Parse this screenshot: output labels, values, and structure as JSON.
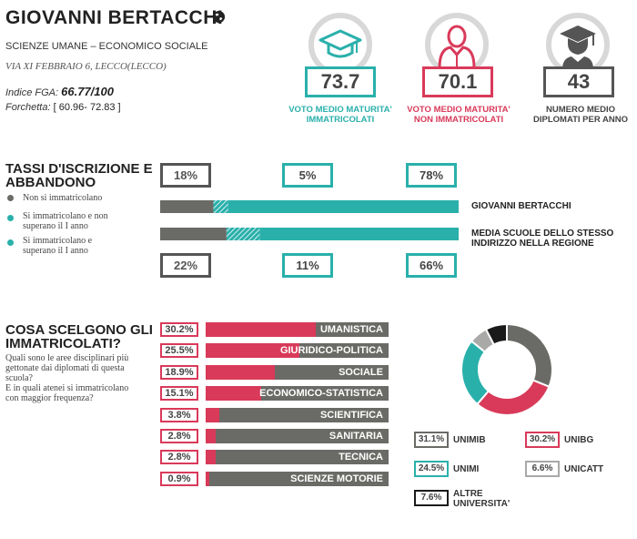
{
  "school": {
    "name": "GIOVANNI BERTACCHI",
    "type": "SCIENZE UMANE – ECONOMICO SOCIALE",
    "address": "VIA XI FEBBRAIO 6, LECCO(LECCO)",
    "fga_label": "Indice FGA:",
    "fga_value": "66.77/100",
    "forchetta_label": "Forchetta:",
    "forchetta_value": "[ 60.96- 72.83 ]"
  },
  "stats": [
    {
      "icon": "graduation-cap-icon",
      "value": "73.7",
      "label_1": "VOTO MEDIO MATURITA'",
      "label_2": "IMMATRICOLATI",
      "color": "#2ab0ab"
    },
    {
      "icon": "person-icon",
      "value": "70.1",
      "label_1": "VOTO MEDIO MATURITA'",
      "label_2": "NON IMMATRICOLATI",
      "color": "#d93a5a"
    },
    {
      "icon": "graduate-icon",
      "value": "43",
      "label_1": "NUMERO MEDIO",
      "label_2": "DIPLOMATI PER ANNO",
      "color": "#555555"
    }
  ],
  "enrollment": {
    "title_1": "TASSI D'ISCRIZIONE E",
    "title_2": "ABBANDONO",
    "legend": [
      {
        "label_1": "Non si immatricolano",
        "label_2": "",
        "color": "#6a6a66"
      },
      {
        "label_1": "Si immatricolano e non",
        "label_2": "superano il I anno",
        "color": "#2ab0ab"
      },
      {
        "label_1": "Si immatricolano e",
        "label_2": "superano il I anno",
        "color": "#2ab0ab"
      }
    ]
  },
  "chart_data": [
    {
      "type": "bar",
      "title": "TASSI D'ISCRIZIONE E ABBANDONO",
      "categories": [
        "GIOVANNI BERTACCHI",
        "MEDIA SCUOLE DELLO STESSO INDIRIZZO NELLA REGIONE"
      ],
      "series": [
        {
          "name": "Non si immatricolano",
          "values": [
            18,
            22
          ],
          "labels": [
            "18%",
            "22%"
          ]
        },
        {
          "name": "Si immatricolano e non superano il I anno",
          "values": [
            5,
            11
          ],
          "labels": [
            "5%",
            "11%"
          ]
        },
        {
          "name": "Si immatricolano e superano il I anno",
          "values": [
            78,
            66
          ],
          "labels": [
            "78%",
            "66%"
          ]
        }
      ],
      "row_labels": [
        [
          "GIOVANNI BERTACCHI"
        ],
        [
          "MEDIA SCUOLE DELLO STESSO",
          "INDIRIZZO NELLA REGIONE"
        ]
      ]
    },
    {
      "type": "bar",
      "title": "COSA SCELGONO GLI IMMATRICOLATI?",
      "categories": [
        "UMANISTICA",
        "GIURIDICO-POLITICA",
        "SOCIALE",
        "ECONOMICO-STATISTICA",
        "SCIENTIFICA",
        "SANITARIA",
        "TECNICA",
        "SCIENZE MOTORIE"
      ],
      "values": [
        30.2,
        25.5,
        18.9,
        15.1,
        3.8,
        2.8,
        2.8,
        0.9
      ],
      "labels": [
        "30.2%",
        "25.5%",
        "18.9%",
        "15.1%",
        "3.8%",
        "2.8%",
        "2.8%",
        "0.9%"
      ],
      "xlim": [
        0,
        100
      ]
    },
    {
      "type": "pie",
      "categories": [
        "UNIMIB",
        "UNIBG",
        "UNIMI",
        "UNICATT",
        "ALTRE UNIVERSITA'"
      ],
      "values": [
        31.1,
        30.2,
        24.5,
        6.6,
        7.6
      ],
      "labels": [
        "31.1%",
        "30.2%",
        "24.5%",
        "6.6%",
        "7.6%"
      ],
      "colors": [
        "#6a6a66",
        "#d93a5a",
        "#2ab0ab",
        "#a9a9a7",
        "#1a1a1a"
      ]
    }
  ],
  "choices": {
    "title_1": "COSA SCELGONO GLI",
    "title_2": "IMMATRICOLATI?",
    "desc": [
      "Quali sono le aree disciplinari più",
      "gettonate dai diplomati di questa",
      "scuola?",
      "E in quali atenei si immatricolano",
      "con maggior frequenza?"
    ]
  },
  "colors": {
    "teal": "#2ab0ab",
    "red": "#d93a5a",
    "gray": "#6a6a66",
    "light_gray": "#a9a9a7",
    "black": "#1a1a1a"
  }
}
